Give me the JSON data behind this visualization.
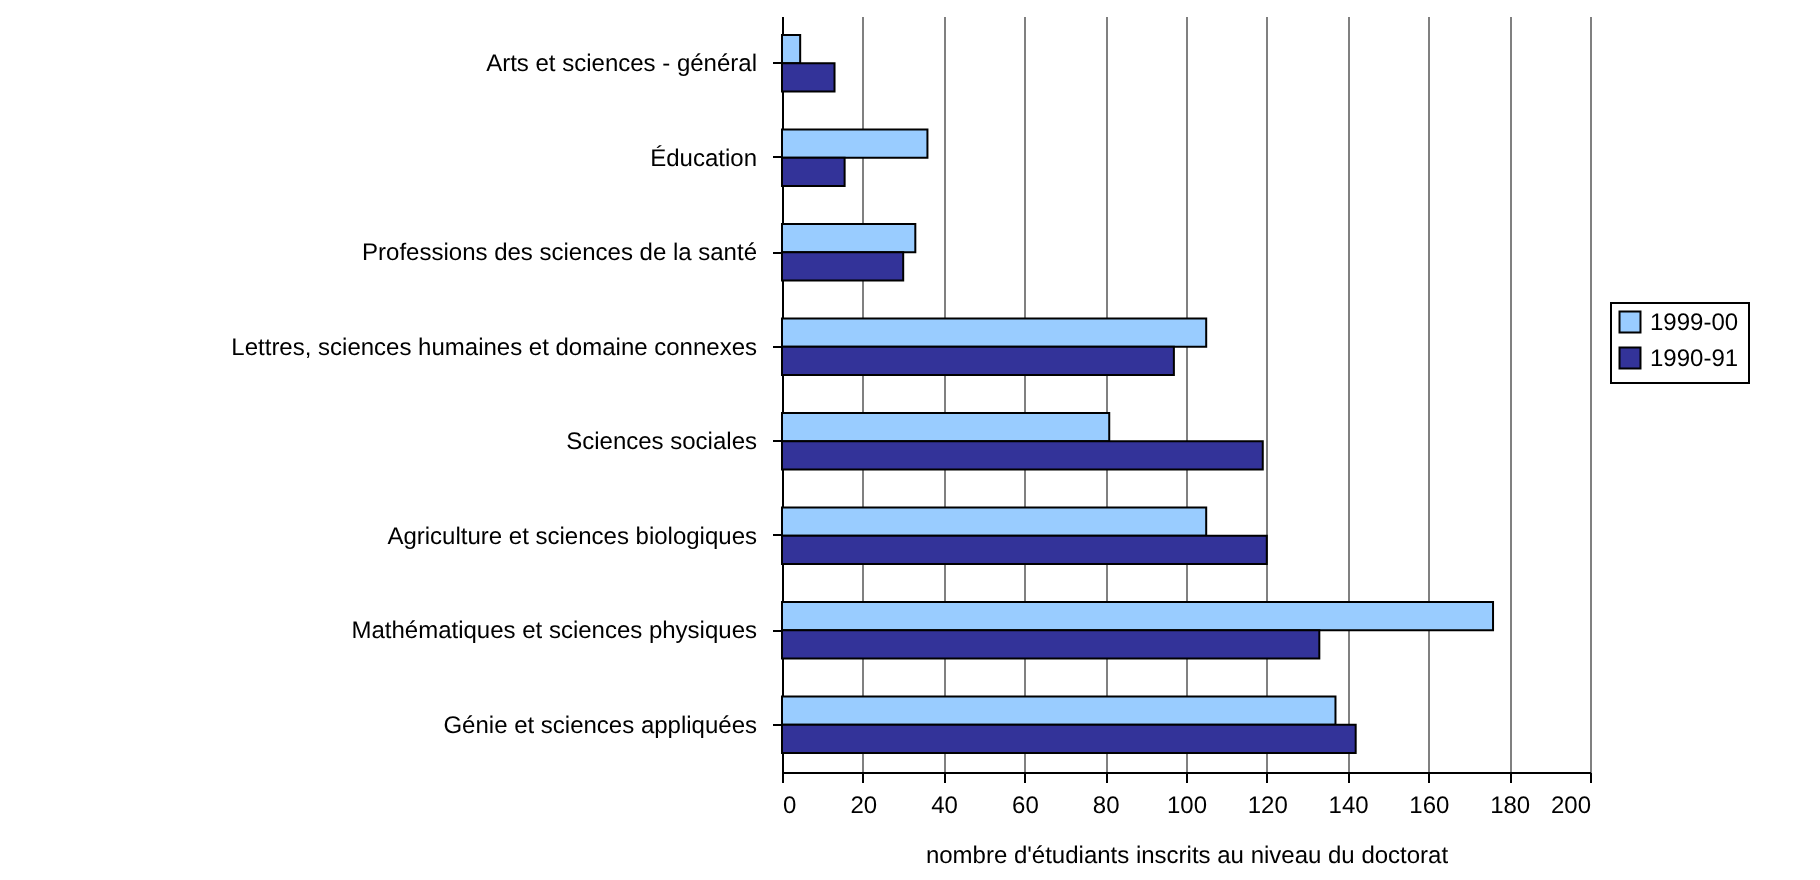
{
  "chart_data": {
    "type": "bar",
    "orientation": "horizontal",
    "xlabel": "nombre d'étudiants inscrits au niveau du doctorat",
    "categories": [
      "Arts et sciences - général",
      "Éducation",
      "Professions des sciences de la santé",
      "Lettres, sciences humaines et domaine connexes",
      "Sciences sociales",
      "Agriculture et sciences biologiques",
      "Mathématiques et sciences physiques",
      "Génie et sciences appliquées"
    ],
    "series": [
      {
        "name": "1999-00",
        "color": "#99ccff",
        "values": [
          4.5,
          36,
          33,
          105,
          81,
          105,
          176,
          137
        ]
      },
      {
        "name": "1990-91",
        "color": "#333399",
        "values": [
          13,
          15.5,
          30,
          97,
          119,
          120,
          133,
          142
        ]
      }
    ],
    "xlim": [
      0,
      200
    ],
    "xticks": [
      0,
      20,
      40,
      60,
      80,
      100,
      120,
      140,
      160,
      180,
      200
    ],
    "grid": "x",
    "legend": "right"
  }
}
